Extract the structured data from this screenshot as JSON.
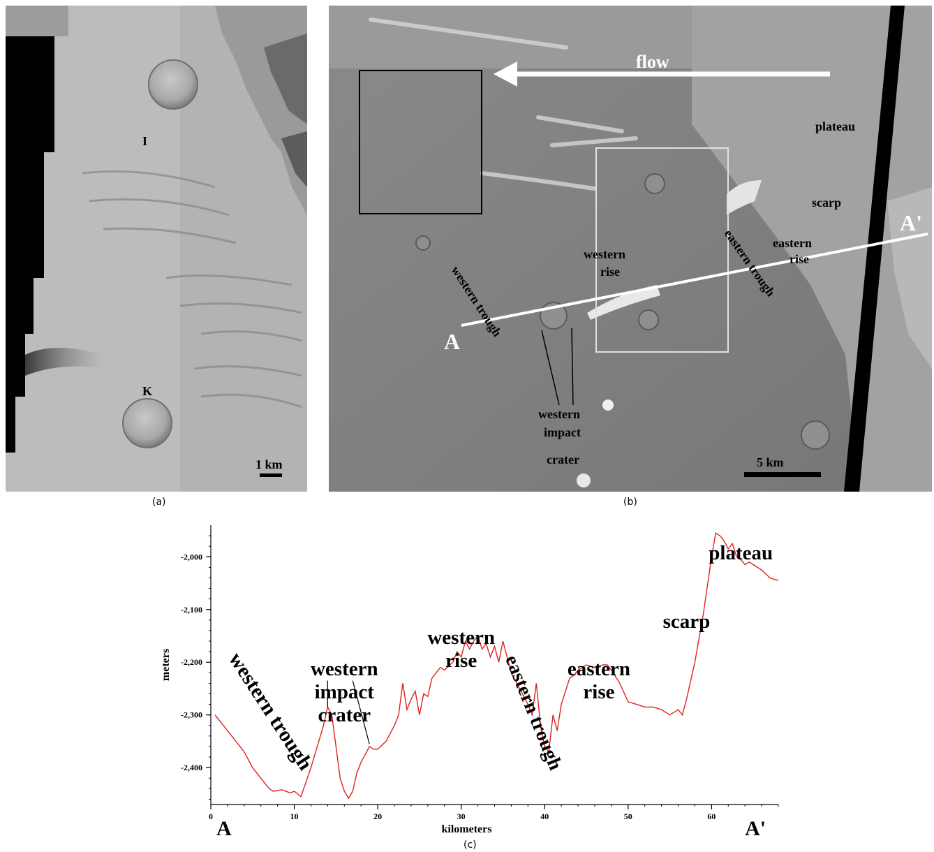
{
  "figure": {
    "panel_a": {
      "caption": "(a)",
      "labels": {
        "crater_upper": "I",
        "crater_lower": "K"
      },
      "scale_bar": "1 km"
    },
    "panel_b": {
      "caption": "(b)",
      "flow_label": "flow",
      "labels": {
        "plateau": "plateau",
        "scarp": "scarp",
        "eastern_rise_1": "eastern",
        "eastern_rise_2": "rise",
        "eastern_trough": "eastern trough",
        "western_rise_1": "western",
        "western_rise_2": "rise",
        "western_trough": "western trough",
        "crater_1": "western",
        "crater_2": "impact",
        "crater_3": "crater",
        "start": "A",
        "end": "A'"
      },
      "scale_bar": "5 km"
    },
    "panel_c": {
      "caption": "(c)"
    }
  },
  "chart_data": {
    "type": "line",
    "title": "",
    "xlabel": "kilometers",
    "ylabel": "meters",
    "xlim": [
      0,
      68
    ],
    "ylim": [
      -2470,
      -1940
    ],
    "x_ticks": [
      0,
      10,
      20,
      30,
      40,
      50,
      60
    ],
    "x_tick_labels": [
      "0",
      "10",
      "20",
      "30",
      "40",
      "50",
      "60"
    ],
    "y_ticks": [
      -2000,
      -2100,
      -2200,
      -2300,
      -2400
    ],
    "y_tick_labels": [
      "-2,000",
      "-2,100",
      "-2,200",
      "-2,300",
      "-2,400"
    ],
    "end_labels": {
      "start": "A",
      "end": "A'"
    },
    "series": [
      {
        "color": "#e0201e",
        "x": [
          0.5,
          2,
          4,
          5,
          6,
          7,
          7.5,
          8.5,
          9.5,
          10,
          10.8,
          12,
          13.5,
          14,
          14.5,
          15,
          15.5,
          16,
          16.5,
          17,
          17.5,
          18,
          18.5,
          19,
          19.5,
          20,
          21,
          22,
          22.5,
          23,
          23.5,
          24,
          24.5,
          25,
          25.5,
          26,
          26.5,
          27,
          27.5,
          28,
          29,
          29.5,
          30,
          30.5,
          31,
          31.5,
          32,
          32.5,
          33,
          33.5,
          34,
          34.5,
          35,
          36,
          37,
          38,
          38.5,
          39,
          39.5,
          40,
          40.5,
          41,
          41.5,
          42,
          43,
          43.5,
          44,
          45,
          46,
          47,
          47.5,
          48,
          49,
          50,
          51,
          52,
          53,
          54,
          55,
          56,
          56.5,
          57,
          58,
          59,
          60,
          60.5,
          61,
          61.5,
          62,
          62.5,
          63,
          63.5,
          64,
          64.5,
          65,
          65.5,
          66,
          67,
          68
        ],
        "y": [
          -2300,
          -2330,
          -2370,
          -2400,
          -2420,
          -2440,
          -2445,
          -2442,
          -2448,
          -2445,
          -2455,
          -2400,
          -2320,
          -2285,
          -2300,
          -2360,
          -2420,
          -2445,
          -2458,
          -2445,
          -2410,
          -2390,
          -2375,
          -2360,
          -2365,
          -2365,
          -2350,
          -2320,
          -2300,
          -2240,
          -2290,
          -2270,
          -2255,
          -2300,
          -2260,
          -2265,
          -2230,
          -2220,
          -2210,
          -2215,
          -2200,
          -2180,
          -2190,
          -2160,
          -2175,
          -2160,
          -2150,
          -2175,
          -2165,
          -2190,
          -2170,
          -2200,
          -2160,
          -2220,
          -2250,
          -2280,
          -2300,
          -2240,
          -2320,
          -2360,
          -2370,
          -2300,
          -2330,
          -2280,
          -2230,
          -2225,
          -2215,
          -2205,
          -2210,
          -2205,
          -2205,
          -2215,
          -2240,
          -2275,
          -2280,
          -2285,
          -2285,
          -2290,
          -2300,
          -2290,
          -2300,
          -2270,
          -2200,
          -2110,
          -2000,
          -1955,
          -1960,
          -1970,
          -1985,
          -1975,
          -2000,
          -2005,
          -2015,
          -2010,
          -2015,
          -2020,
          -2025,
          -2040,
          -2045
        ]
      }
    ],
    "annotations": [
      {
        "text": "western trough",
        "x": 6.5,
        "y": -2300,
        "rotation": 57,
        "size": 30
      },
      {
        "lines": [
          "western",
          "impact",
          "crater"
        ],
        "x": 16,
        "y": -2225,
        "size": 29
      },
      {
        "lines": [
          "western",
          "rise"
        ],
        "x": 30,
        "y": -2165,
        "size": 29
      },
      {
        "text": "eastern trough",
        "x": 38,
        "y": -2300,
        "rotation": 68,
        "size": 28
      },
      {
        "lines": [
          "eastern",
          "rise"
        ],
        "x": 46.5,
        "y": -2225,
        "size": 29
      },
      {
        "text": "scarp",
        "x": 57,
        "y": -2135,
        "size": 29
      },
      {
        "text": "plateau",
        "x": 63.5,
        "y": -2005,
        "size": 29
      }
    ],
    "pointer_lines": [
      {
        "from": [
          14,
          -2235
        ],
        "to": [
          14,
          -2285
        ]
      },
      {
        "from": [
          17,
          -2235
        ],
        "to": [
          19,
          -2355
        ]
      }
    ]
  }
}
